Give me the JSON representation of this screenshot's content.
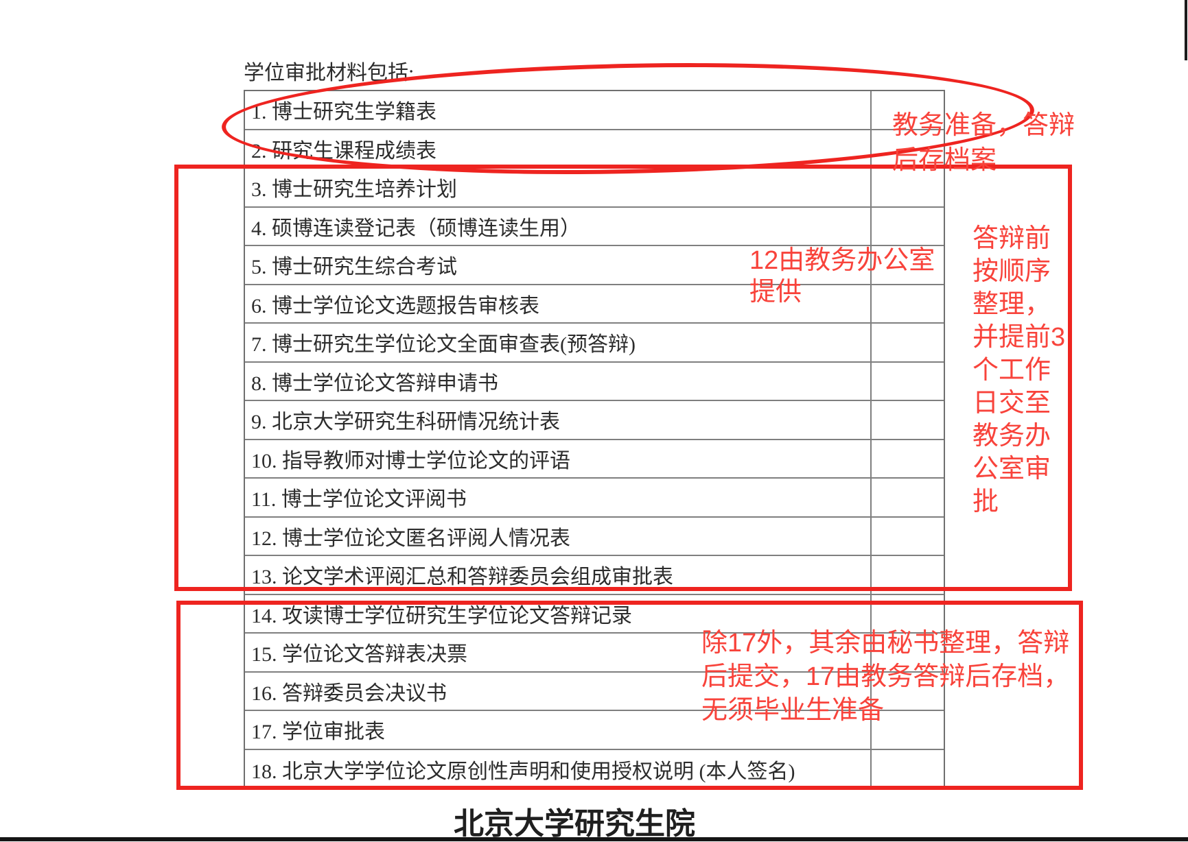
{
  "page": {
    "title": "学位审批材料包括:",
    "footer": "北京大学研究生院"
  },
  "table": {
    "items": [
      {
        "label": "1. 博士研究生学籍表"
      },
      {
        "label": "2. 研究生课程成绩表"
      },
      {
        "label": "3. 博士研究生培养计划"
      },
      {
        "label": "4. 硕博连读登记表（硕博连读生用）"
      },
      {
        "label": "5. 博士研究生综合考试"
      },
      {
        "label": "6. 博士学位论文选题报告审核表"
      },
      {
        "label": "7. 博士研究生学位论文全面审查表(预答辩)"
      },
      {
        "label": "8. 博士学位论文答辩申请书"
      },
      {
        "label": "9. 北京大学研究生科研情况统计表"
      },
      {
        "label": "10. 指导教师对博士学位论文的评语"
      },
      {
        "label": "11. 博士学位论文评阅书"
      },
      {
        "label": "12. 博士学位论文匿名评阅人情况表"
      },
      {
        "label": "13. 论文学术评阅汇总和答辩委员会组成审批表"
      },
      {
        "label": "14. 攻读博士学位研究生学位论文答辩记录"
      },
      {
        "label": "15. 学位论文答辩表决票"
      },
      {
        "label": "16. 答辩委员会决议书"
      },
      {
        "label": "17. 学位审批表"
      },
      {
        "label": "18. 北京大学学位论文原创性声明和使用授权说明 (本人签名)"
      }
    ]
  },
  "annotations": {
    "circle_note": {
      "lines": [
        "教务准备，答辩",
        "后存档案"
      ]
    },
    "provide_note": {
      "lines": [
        "12由教务办公室",
        "提供"
      ]
    },
    "right_note": {
      "lines": [
        "答辩前",
        "按顺序",
        "整理，",
        "并提前3",
        "个工作",
        "日交至",
        "教务办",
        "公室审",
        "批"
      ]
    },
    "bottom_note": {
      "lines": [
        "除17外，其余由秘书整理，答辩",
        "后提交，17由教务答辩后存档，",
        "无须毕业生准备"
      ]
    }
  },
  "colors": {
    "annotation_stroke_red": "#ee2420",
    "annotation_text_red": "#f8433b",
    "table_border_gray": "#7f7f7f",
    "document_text": "#2c2c2c"
  }
}
